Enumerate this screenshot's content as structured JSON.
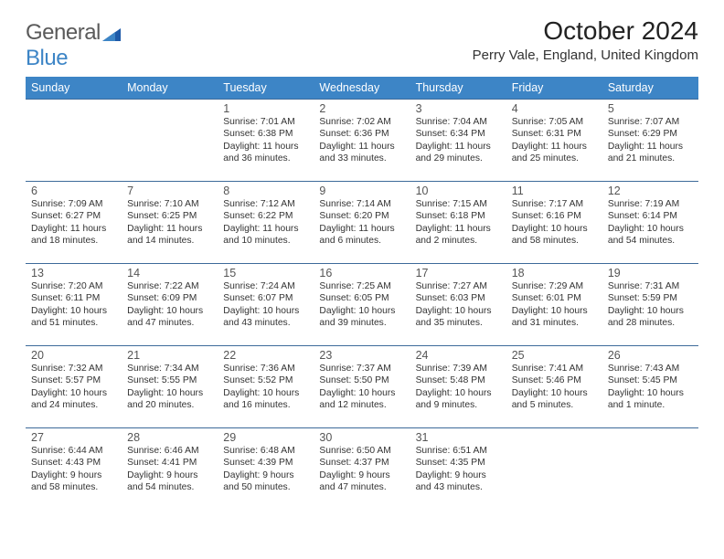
{
  "brand": {
    "part1": "General",
    "part2": "Blue"
  },
  "title": "October 2024",
  "location": "Perry Vale, England, United Kingdom",
  "colors": {
    "header_bg": "#3d85c6",
    "header_text": "#ffffff",
    "daynum": "#555555",
    "body_text": "#333333",
    "rule": "#3d6a9a",
    "page_bg": "#ffffff",
    "logo_gray": "#5a5a5a",
    "logo_blue": "#3d85c6"
  },
  "typography": {
    "title_fontsize": 28,
    "location_fontsize": 15,
    "header_fontsize": 12.5,
    "daynum_fontsize": 12.5,
    "cell_fontsize": 10.3
  },
  "day_headers": [
    "Sunday",
    "Monday",
    "Tuesday",
    "Wednesday",
    "Thursday",
    "Friday",
    "Saturday"
  ],
  "weeks": [
    [
      null,
      null,
      {
        "n": "1",
        "sr": "7:01 AM",
        "ss": "6:38 PM",
        "dl": "11 hours and 36 minutes."
      },
      {
        "n": "2",
        "sr": "7:02 AM",
        "ss": "6:36 PM",
        "dl": "11 hours and 33 minutes."
      },
      {
        "n": "3",
        "sr": "7:04 AM",
        "ss": "6:34 PM",
        "dl": "11 hours and 29 minutes."
      },
      {
        "n": "4",
        "sr": "7:05 AM",
        "ss": "6:31 PM",
        "dl": "11 hours and 25 minutes."
      },
      {
        "n": "5",
        "sr": "7:07 AM",
        "ss": "6:29 PM",
        "dl": "11 hours and 21 minutes."
      }
    ],
    [
      {
        "n": "6",
        "sr": "7:09 AM",
        "ss": "6:27 PM",
        "dl": "11 hours and 18 minutes."
      },
      {
        "n": "7",
        "sr": "7:10 AM",
        "ss": "6:25 PM",
        "dl": "11 hours and 14 minutes."
      },
      {
        "n": "8",
        "sr": "7:12 AM",
        "ss": "6:22 PM",
        "dl": "11 hours and 10 minutes."
      },
      {
        "n": "9",
        "sr": "7:14 AM",
        "ss": "6:20 PM",
        "dl": "11 hours and 6 minutes."
      },
      {
        "n": "10",
        "sr": "7:15 AM",
        "ss": "6:18 PM",
        "dl": "11 hours and 2 minutes."
      },
      {
        "n": "11",
        "sr": "7:17 AM",
        "ss": "6:16 PM",
        "dl": "10 hours and 58 minutes."
      },
      {
        "n": "12",
        "sr": "7:19 AM",
        "ss": "6:14 PM",
        "dl": "10 hours and 54 minutes."
      }
    ],
    [
      {
        "n": "13",
        "sr": "7:20 AM",
        "ss": "6:11 PM",
        "dl": "10 hours and 51 minutes."
      },
      {
        "n": "14",
        "sr": "7:22 AM",
        "ss": "6:09 PM",
        "dl": "10 hours and 47 minutes."
      },
      {
        "n": "15",
        "sr": "7:24 AM",
        "ss": "6:07 PM",
        "dl": "10 hours and 43 minutes."
      },
      {
        "n": "16",
        "sr": "7:25 AM",
        "ss": "6:05 PM",
        "dl": "10 hours and 39 minutes."
      },
      {
        "n": "17",
        "sr": "7:27 AM",
        "ss": "6:03 PM",
        "dl": "10 hours and 35 minutes."
      },
      {
        "n": "18",
        "sr": "7:29 AM",
        "ss": "6:01 PM",
        "dl": "10 hours and 31 minutes."
      },
      {
        "n": "19",
        "sr": "7:31 AM",
        "ss": "5:59 PM",
        "dl": "10 hours and 28 minutes."
      }
    ],
    [
      {
        "n": "20",
        "sr": "7:32 AM",
        "ss": "5:57 PM",
        "dl": "10 hours and 24 minutes."
      },
      {
        "n": "21",
        "sr": "7:34 AM",
        "ss": "5:55 PM",
        "dl": "10 hours and 20 minutes."
      },
      {
        "n": "22",
        "sr": "7:36 AM",
        "ss": "5:52 PM",
        "dl": "10 hours and 16 minutes."
      },
      {
        "n": "23",
        "sr": "7:37 AM",
        "ss": "5:50 PM",
        "dl": "10 hours and 12 minutes."
      },
      {
        "n": "24",
        "sr": "7:39 AM",
        "ss": "5:48 PM",
        "dl": "10 hours and 9 minutes."
      },
      {
        "n": "25",
        "sr": "7:41 AM",
        "ss": "5:46 PM",
        "dl": "10 hours and 5 minutes."
      },
      {
        "n": "26",
        "sr": "7:43 AM",
        "ss": "5:45 PM",
        "dl": "10 hours and 1 minute."
      }
    ],
    [
      {
        "n": "27",
        "sr": "6:44 AM",
        "ss": "4:43 PM",
        "dl": "9 hours and 58 minutes."
      },
      {
        "n": "28",
        "sr": "6:46 AM",
        "ss": "4:41 PM",
        "dl": "9 hours and 54 minutes."
      },
      {
        "n": "29",
        "sr": "6:48 AM",
        "ss": "4:39 PM",
        "dl": "9 hours and 50 minutes."
      },
      {
        "n": "30",
        "sr": "6:50 AM",
        "ss": "4:37 PM",
        "dl": "9 hours and 47 minutes."
      },
      {
        "n": "31",
        "sr": "6:51 AM",
        "ss": "4:35 PM",
        "dl": "9 hours and 43 minutes."
      },
      null,
      null
    ]
  ],
  "labels": {
    "sunrise": "Sunrise:",
    "sunset": "Sunset:",
    "daylight": "Daylight:"
  }
}
